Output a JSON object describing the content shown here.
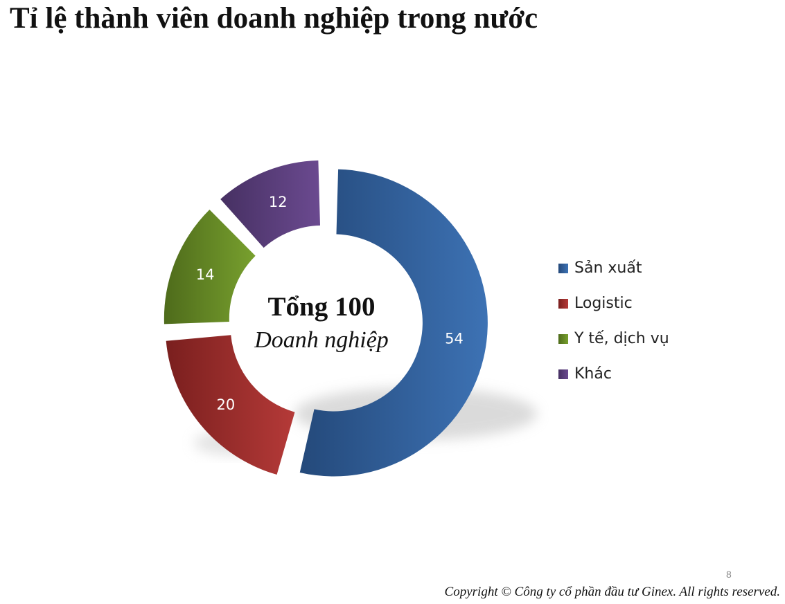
{
  "title": "Tỉ lệ thành viên doanh nghiệp trong nước",
  "center": {
    "total_text": "Tổng 100",
    "sub_text": "Doanh nghiệp"
  },
  "chart_data": {
    "type": "pie",
    "variant": "doughnut",
    "categories": [
      "Sản xuất",
      "Logistic",
      "Y tế, dịch vụ",
      "Khác"
    ],
    "values": [
      54,
      20,
      14,
      12
    ],
    "data_labels": [
      "54",
      "20",
      "14",
      "12"
    ],
    "colors": [
      "#3d72b4",
      "#b53a38",
      "#78a02e",
      "#6b4a90"
    ],
    "dark_colors": [
      "#24497a",
      "#7a1f1e",
      "#4e6b1b",
      "#463062"
    ],
    "legend_position": "right",
    "exploded": true
  },
  "page_number": "8",
  "copyright": "Copyright © Công ty cổ phần đầu tư Ginex. All rights reserved."
}
